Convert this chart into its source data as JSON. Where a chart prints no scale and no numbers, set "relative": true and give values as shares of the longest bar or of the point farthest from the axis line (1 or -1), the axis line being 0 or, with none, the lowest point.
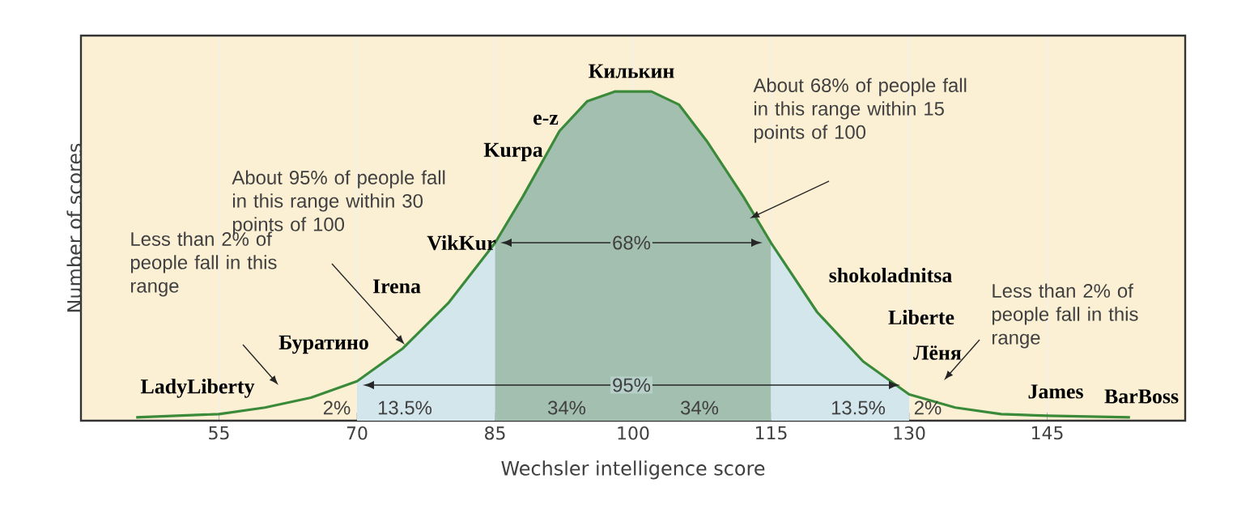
{
  "chart_data": {
    "type": "line",
    "relative": true,
    "xlabel": "Wechsler intelligence score",
    "ylabel": "Number of scores",
    "xlim": [
      40,
      160
    ],
    "xticks": [
      55,
      70,
      85,
      100,
      115,
      130,
      145
    ],
    "grid": "x",
    "series": [
      {
        "type": "area",
        "color": "#d3e6ec",
        "x": [
          70,
          75,
          80,
          85
        ],
        "values": [
          0.12,
          0.22,
          0.36,
          0.54
        ]
      },
      {
        "type": "area",
        "color": "#a3bfb0",
        "x": [
          85,
          88,
          92,
          95,
          98,
          100,
          102,
          105,
          108,
          112,
          115
        ],
        "values": [
          0.54,
          0.68,
          0.88,
          0.97,
          1.0,
          1.0,
          1.0,
          0.96,
          0.85,
          0.68,
          0.54
        ]
      },
      {
        "type": "area",
        "color": "#d3e6ec",
        "x": [
          115,
          120,
          125,
          130
        ],
        "values": [
          0.54,
          0.33,
          0.18,
          0.08
        ]
      },
      {
        "color": "#3a8a3a",
        "x": [
          46,
          55,
          60,
          65,
          70,
          75,
          80,
          85,
          88,
          92,
          95,
          98,
          100,
          102,
          105,
          108,
          112,
          115,
          120,
          125,
          130,
          135,
          140,
          145,
          154
        ],
        "values": [
          0.01,
          0.02,
          0.04,
          0.07,
          0.12,
          0.22,
          0.36,
          0.54,
          0.68,
          0.88,
          0.97,
          1.0,
          1.0,
          1.0,
          0.96,
          0.85,
          0.68,
          0.54,
          0.33,
          0.18,
          0.08,
          0.04,
          0.02,
          0.015,
          0.01
        ]
      }
    ],
    "annotations": [
      "Less than 2% of people fall in this range",
      "About 95% of people fall in this range within 30 points of 100",
      "About 68% of people fall in this range within 15 points of 100",
      "Less than 2% of people fall in this range",
      "2%",
      "13.5%",
      "34%",
      "34%",
      "13.5%",
      "2%",
      "LadyLiberty",
      "Буратино",
      "Irena",
      "VikKur",
      "Kurpa",
      "e-z",
      "Килькин",
      "shokoladnitsa",
      "Liberte",
      "Лёня",
      "James",
      "BarBoss",
      "95%",
      "68%"
    ]
  }
}
